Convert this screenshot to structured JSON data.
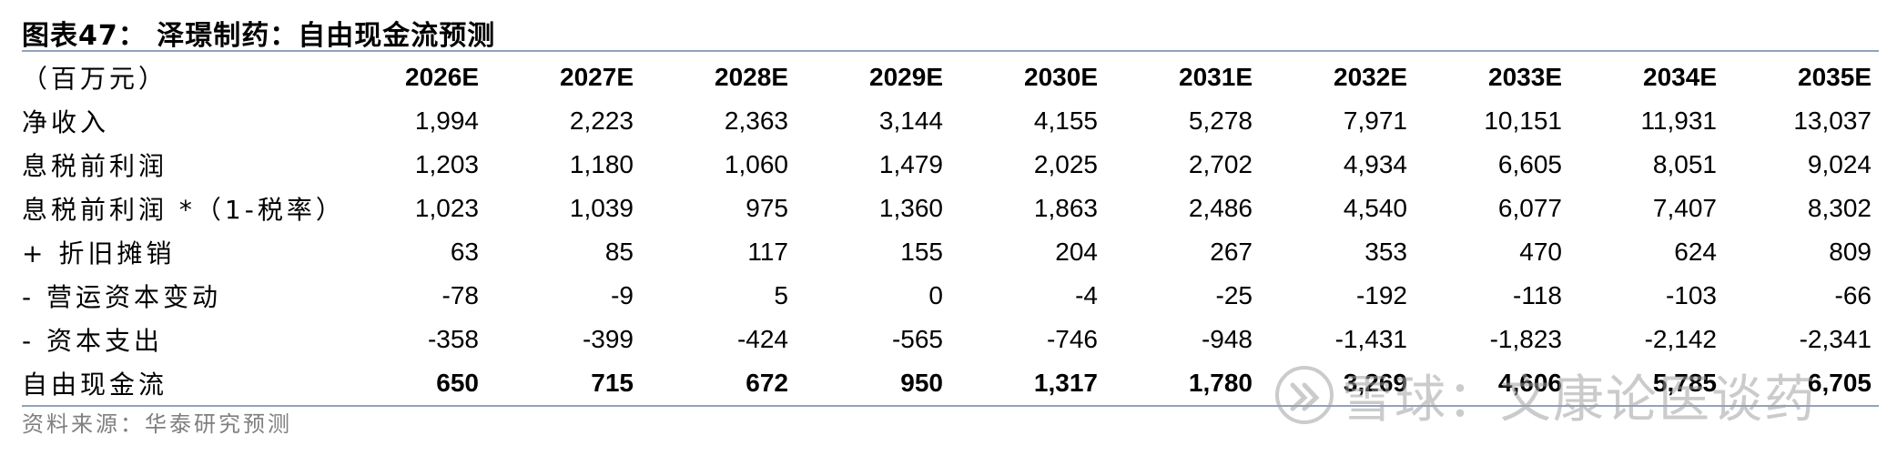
{
  "title": "图表47：  泽璟制药：自由现金流预测",
  "table": {
    "header_label": "（百万元）",
    "years": [
      "2026E",
      "2027E",
      "2028E",
      "2029E",
      "2030E",
      "2031E",
      "2032E",
      "2033E",
      "2034E",
      "2035E"
    ],
    "rows": [
      {
        "label": "净收入",
        "values": [
          "1,994",
          "2,223",
          "2,363",
          "3,144",
          "4,155",
          "5,278",
          "7,971",
          "10,151",
          "11,931",
          "13,037"
        ]
      },
      {
        "label": "息税前利润",
        "values": [
          "1,203",
          "1,180",
          "1,060",
          "1,479",
          "2,025",
          "2,702",
          "4,934",
          "6,605",
          "8,051",
          "9,024"
        ]
      },
      {
        "label": "息税前利润 *（1-税率）",
        "values": [
          "1,023",
          "1,039",
          "975",
          "1,360",
          "1,863",
          "2,486",
          "4,540",
          "6,077",
          "7,407",
          "8,302"
        ]
      },
      {
        "label": "+ 折旧摊销",
        "values": [
          "63",
          "85",
          "117",
          "155",
          "204",
          "267",
          "353",
          "470",
          "624",
          "809"
        ]
      },
      {
        "label": "- 营运资本变动",
        "values": [
          "-78",
          "-9",
          "5",
          "0",
          "-4",
          "-25",
          "-192",
          "-118",
          "-103",
          "-66"
        ]
      },
      {
        "label": "- 资本支出",
        "values": [
          "-358",
          "-399",
          "-424",
          "-565",
          "-746",
          "-948",
          "-1,431",
          "-1,823",
          "-2,142",
          "-2,341"
        ]
      }
    ],
    "total": {
      "label": "自由现金流",
      "values": [
        "650",
        "715",
        "672",
        "950",
        "1,317",
        "1,780",
        "3,269",
        "4,606",
        "5,785",
        "6,705"
      ]
    }
  },
  "source": "资料来源：华泰研究预测",
  "watermark": {
    "text": "雪球：文康论医谈药",
    "icon": "snowball-logo-icon"
  },
  "colors": {
    "rule": "#8fa4bd",
    "source_text": "#7f7f7f",
    "watermark": "#a0a0a0"
  }
}
